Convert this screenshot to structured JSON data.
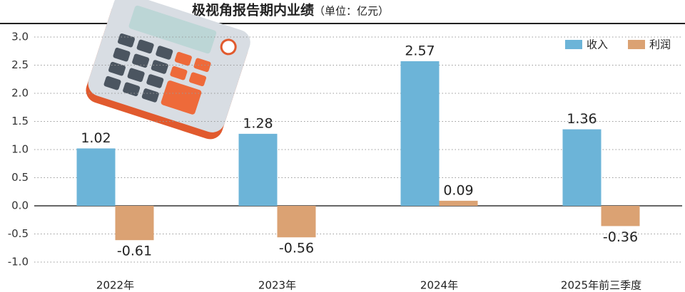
{
  "chart_data": {
    "type": "bar",
    "title": "极视角报告期内业绩",
    "subtitle": "（单位：亿元）",
    "categories": [
      "2022年",
      "2023年",
      "2024年",
      "2025年前三季度"
    ],
    "series": [
      {
        "name": "收入",
        "color": "#6cb4d8",
        "values": [
          1.02,
          1.28,
          2.57,
          1.36
        ]
      },
      {
        "name": "利润",
        "color": "#dba273",
        "values": [
          -0.61,
          -0.56,
          0.09,
          -0.36
        ]
      }
    ],
    "ylim": [
      -1,
      3
    ],
    "yticks": [
      {
        "value": 3,
        "label": "3.0"
      },
      {
        "value": 2.5,
        "label": "2.5"
      },
      {
        "value": 2,
        "label": "2.0"
      },
      {
        "value": 1.5,
        "label": "1.5"
      },
      {
        "value": 1,
        "label": "1.0"
      },
      {
        "value": 0.5,
        "label": "0.5"
      },
      {
        "value": 0,
        "label": "0.0"
      },
      {
        "value": -0.5,
        "label": "-0.5"
      },
      {
        "value": -1,
        "label": "-1.0"
      }
    ],
    "grid": true,
    "legend": "top-right"
  }
}
